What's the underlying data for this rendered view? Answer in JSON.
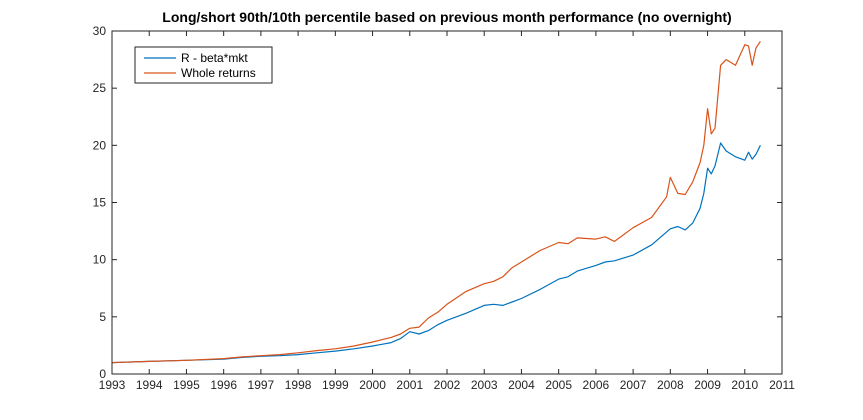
{
  "chart_data": {
    "type": "line",
    "title": "Long/short 90th/10th percentile based on previous month performance (no overnight)",
    "xlabel": "",
    "ylabel": "",
    "xlim": [
      1993,
      2011
    ],
    "ylim": [
      0,
      30
    ],
    "xticks": [
      1993,
      1994,
      1995,
      1996,
      1997,
      1998,
      1999,
      2000,
      2001,
      2002,
      2003,
      2004,
      2005,
      2006,
      2007,
      2008,
      2009,
      2010,
      2011
    ],
    "yticks": [
      0,
      5,
      10,
      15,
      20,
      25,
      30
    ],
    "grid": false,
    "legend_position": "top-left",
    "series": [
      {
        "name": "R - beta*mkt",
        "color": "#0072BD",
        "x": [
          1993.0,
          1994.0,
          1995.0,
          1996.0,
          1996.5,
          1997.0,
          1997.5,
          1998.0,
          1998.5,
          1999.0,
          1999.5,
          2000.0,
          2000.25,
          2000.5,
          2000.75,
          2001.0,
          2001.25,
          2001.5,
          2001.75,
          2002.0,
          2002.5,
          2003.0,
          2003.25,
          2003.5,
          2003.75,
          2004.0,
          2004.5,
          2005.0,
          2005.25,
          2005.5,
          2006.0,
          2006.25,
          2006.5,
          2007.0,
          2007.5,
          2008.0,
          2008.2,
          2008.4,
          2008.6,
          2008.8,
          2008.9,
          2009.0,
          2009.1,
          2009.2,
          2009.35,
          2009.5,
          2009.75,
          2010.0,
          2010.1,
          2010.2,
          2010.3,
          2010.42
        ],
        "y": [
          1.0,
          1.1,
          1.2,
          1.3,
          1.45,
          1.55,
          1.6,
          1.7,
          1.85,
          2.0,
          2.2,
          2.45,
          2.6,
          2.75,
          3.1,
          3.7,
          3.5,
          3.8,
          4.3,
          4.7,
          5.3,
          6.0,
          6.1,
          6.0,
          6.3,
          6.6,
          7.4,
          8.3,
          8.5,
          9.0,
          9.5,
          9.8,
          9.9,
          10.4,
          11.3,
          12.7,
          12.9,
          12.6,
          13.2,
          14.5,
          15.8,
          18.0,
          17.5,
          18.2,
          20.2,
          19.5,
          19.0,
          18.7,
          19.4,
          18.8,
          19.2,
          20.0
        ]
      },
      {
        "name": "Whole returns",
        "color": "#D95319",
        "x": [
          1993.0,
          1994.0,
          1995.0,
          1996.0,
          1996.5,
          1997.0,
          1997.5,
          1998.0,
          1998.5,
          1999.0,
          1999.5,
          2000.0,
          2000.25,
          2000.5,
          2000.75,
          2001.0,
          2001.25,
          2001.5,
          2001.75,
          2002.0,
          2002.5,
          2003.0,
          2003.25,
          2003.5,
          2003.75,
          2004.0,
          2004.5,
          2005.0,
          2005.25,
          2005.5,
          2006.0,
          2006.25,
          2006.5,
          2007.0,
          2007.5,
          2007.9,
          2008.0,
          2008.2,
          2008.4,
          2008.6,
          2008.8,
          2008.9,
          2009.0,
          2009.1,
          2009.2,
          2009.35,
          2009.5,
          2009.75,
          2010.0,
          2010.1,
          2010.2,
          2010.3,
          2010.42
        ],
        "y": [
          1.0,
          1.1,
          1.2,
          1.35,
          1.5,
          1.6,
          1.7,
          1.85,
          2.05,
          2.2,
          2.45,
          2.8,
          3.0,
          3.2,
          3.5,
          4.0,
          4.1,
          4.9,
          5.4,
          6.1,
          7.2,
          7.9,
          8.1,
          8.5,
          9.3,
          9.8,
          10.8,
          11.5,
          11.4,
          11.9,
          11.8,
          12.0,
          11.6,
          12.8,
          13.7,
          15.5,
          17.2,
          15.8,
          15.7,
          16.8,
          18.5,
          20.0,
          23.2,
          21.0,
          21.5,
          27.0,
          27.5,
          27.0,
          28.8,
          28.7,
          27.0,
          28.5,
          29.1
        ]
      }
    ]
  }
}
